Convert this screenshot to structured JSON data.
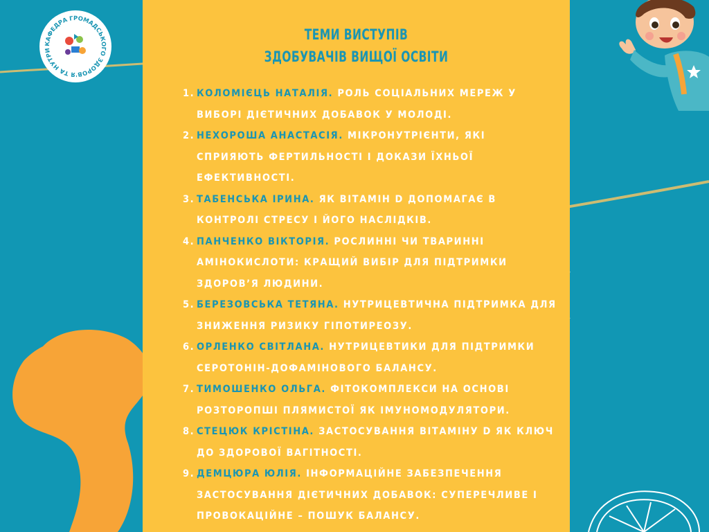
{
  "title": {
    "line1": "ТЕМИ ВИСТУПІВ",
    "line2": "ЗДОБУВАЧІВ ВИЩОЇ ОСВІТИ"
  },
  "logo": {
    "text": "КАФЕДРА ГРОМАДСЬКОГО ЗДОРОВ'Я ТА НУТРИЦІОЛОГІЇ",
    "icon": "department-logo"
  },
  "items": [
    {
      "num": "1.",
      "name": "КОЛОМІЄЦЬ НАТАЛІЯ.",
      "topic": "РОЛЬ СОЦІАЛЬНИХ МЕРЕЖ У ВИБОРІ ДІЄТИЧНИХ ДОБАВОК У МОЛОДІ."
    },
    {
      "num": "2.",
      "name": "НЕХОРОША АНАСТАСІЯ.",
      "topic": "МІКРОНУТРІЄНТИ, ЯКІ СПРИЯЮТЬ ФЕРТИЛЬНОСТІ І ДОКАЗИ ЇХНЬОЇ ЕФЕКТИВНОСТІ."
    },
    {
      "num": "3.",
      "name": "ТАБЕНСЬКА ІРИНА.",
      "topic": "ЯК ВІТАМІН D ДОПОМАГАЄ В КОНТРОЛІ СТРЕСУ І ЙОГО НАСЛІДКІВ."
    },
    {
      "num": "4.",
      "name": "ПАНЧЕНКО ВІКТОРІЯ.",
      "topic": "РОСЛИННІ ЧИ ТВАРИННІ АМІНОКИСЛОТИ: КРАЩИЙ ВИБІР ДЛЯ ПІДТРИМКИ ЗДОРОВ’Я ЛЮДИНИ."
    },
    {
      "num": "5.",
      "name": "БЕРЕЗОВСЬКА ТЕТЯНА.",
      "topic": " НУТРИЦЕВТИЧНА ПІДТРИМКА ДЛЯ ЗНИЖЕННЯ РИЗИКУ ГІПОТИРЕОЗУ."
    },
    {
      "num": "6.",
      "name": "ОРЛЕНКО СВІТЛАНА.",
      "topic": "НУТРИЦЕВТИКИ ДЛЯ ПІДТРИМКИ СЕРОТОНІН-ДОФАМІНОВОГО БАЛАНСУ."
    },
    {
      "num": "7.",
      "name": "ТИМОШЕНКО ОЛЬГА.",
      "topic": "ФІТОКОМПЛЕКСИ НА ОСНОВІ РОЗТОРОПШІ ПЛЯМИСТОЇ ЯК ІМУНОМОДУЛЯТОРИ."
    },
    {
      "num": "8.",
      "name": "СТЕЦЮК КРІСТІНА.",
      "topic": "ЗАСТОСУВАННЯ ВІТАМІНУ D ЯК КЛЮЧ ДО ЗДОРОВОЇ ВАГІТНОСТІ."
    },
    {
      "num": "9.",
      "name": "ДЕМЦЮРА ЮЛІЯ.",
      "topic": "ІНФОРМАЦІЙНЕ ЗАБЕЗПЕЧЕННЯ ЗАСТОСУВАННЯ ДІЄТИЧНИХ ДОБАВОК: СУПЕРЕЧЛИВЕ І ПРОВОКАЦІЙНЕ – ПОШУК БАЛАНСУ."
    }
  ],
  "decor": {
    "illustration": "cartoon-boy",
    "shapes": [
      "orange-blob",
      "gold-brush-stroke",
      "lemon-slice-outline",
      "shield-outline"
    ]
  },
  "colors": {
    "background": "#1197b4",
    "panel": "#fcc33e",
    "accent": "#1a95b3",
    "text": "#ffffff",
    "blob": "#f7a437"
  }
}
